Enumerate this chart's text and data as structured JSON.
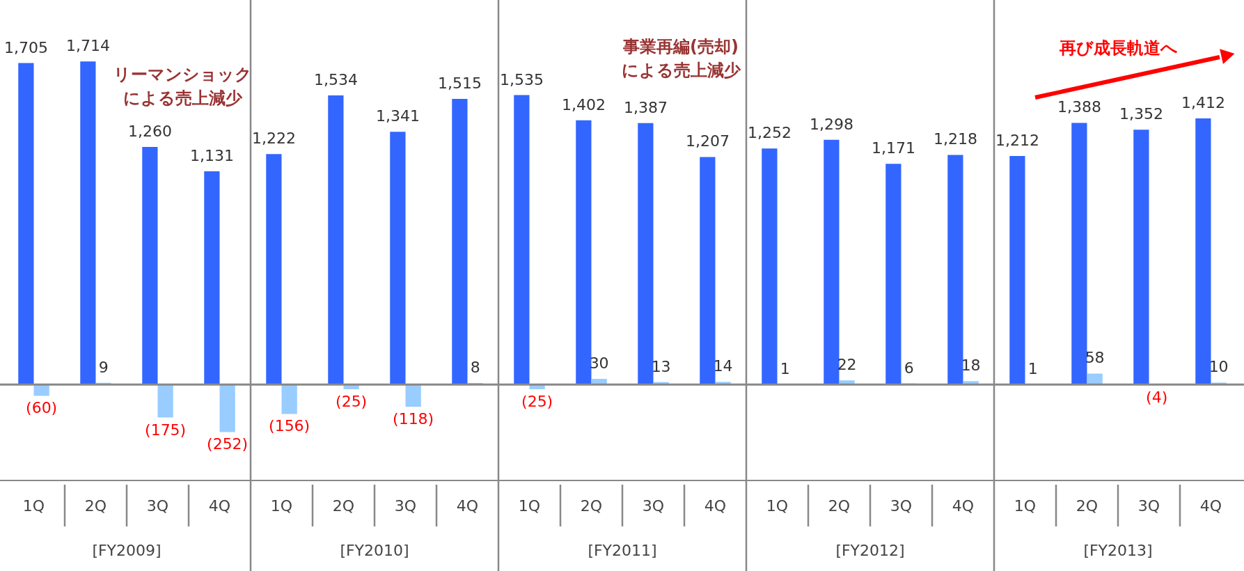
{
  "chart_data": {
    "type": "bar",
    "categories": [
      "1Q",
      "2Q",
      "3Q",
      "4Q",
      "1Q",
      "2Q",
      "3Q",
      "4Q",
      "1Q",
      "2Q",
      "3Q",
      "4Q",
      "1Q",
      "2Q",
      "3Q",
      "4Q",
      "1Q",
      "2Q",
      "3Q",
      "4Q"
    ],
    "series": [
      {
        "color": "#3366ff",
        "values": [
          1705,
          1714,
          1260,
          1131,
          1222,
          1534,
          1341,
          1515,
          1535,
          1402,
          1387,
          1207,
          1252,
          1298,
          1171,
          1218,
          1212,
          1388,
          1352,
          1412
        ],
        "value_labels": [
          "1,705",
          "1,714",
          "1,260",
          "1,131",
          "1,222",
          "1,534",
          "1,341",
          "1,515",
          "1,535",
          "1,402",
          "1,387",
          "1,207",
          "1,252",
          "1,298",
          "1,171",
          "1,218",
          "1,212",
          "1,388",
          "1,352",
          "1,412"
        ]
      },
      {
        "color": "#99ccff",
        "values": [
          -60,
          9,
          -175,
          -252,
          -156,
          -25,
          -118,
          8,
          -25,
          30,
          13,
          14,
          1,
          22,
          6,
          18,
          1,
          58,
          -4,
          10
        ],
        "value_labels": [
          "(60)",
          "9",
          "(175)",
          "(252)",
          "(156)",
          "(25)",
          "(118)",
          "8",
          "(25)",
          "30",
          "13",
          "14",
          "1",
          "22",
          "6",
          "18",
          "1",
          "58",
          "(4)",
          "10"
        ]
      }
    ],
    "annotations": [
      "[FY2009]",
      "[FY2010]",
      "[FY2011]",
      "[FY2012]",
      "[FY2013]",
      "リーマンショック",
      "による売上減少",
      "事業再編(売却)",
      "による売上減少",
      "再び成長軌道へ"
    ]
  }
}
